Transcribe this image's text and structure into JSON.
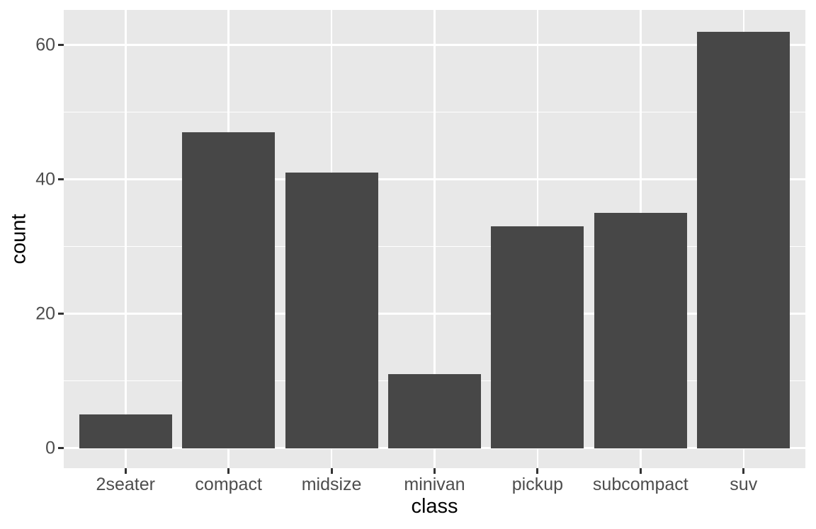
{
  "chart_data": {
    "type": "bar",
    "title": "",
    "xlabel": "class",
    "ylabel": "count",
    "categories": [
      "2seater",
      "compact",
      "midsize",
      "minivan",
      "pickup",
      "subcompact",
      "suv"
    ],
    "values": [
      5,
      47,
      41,
      11,
      33,
      35,
      62
    ],
    "y_tick_values": [
      0,
      20,
      40,
      60
    ],
    "y_tick_labels": [
      "0",
      "20",
      "40",
      "60"
    ],
    "y_minor_values": [
      10,
      30,
      50
    ],
    "ylim": [
      0,
      65
    ],
    "grid": "major-and-minor-horizontal, major-vertical-at-categories",
    "legend_position": "none",
    "theme": "ggplot2-grey",
    "colors": {
      "bar_fill": "#474747",
      "panel_background": "#E8E8E8",
      "gridline": "#FFFFFF",
      "axis_text": "#4D4D4D",
      "axis_title": "#000000",
      "tick_mark": "#333333",
      "figure_background": "#FFFFFF"
    }
  }
}
